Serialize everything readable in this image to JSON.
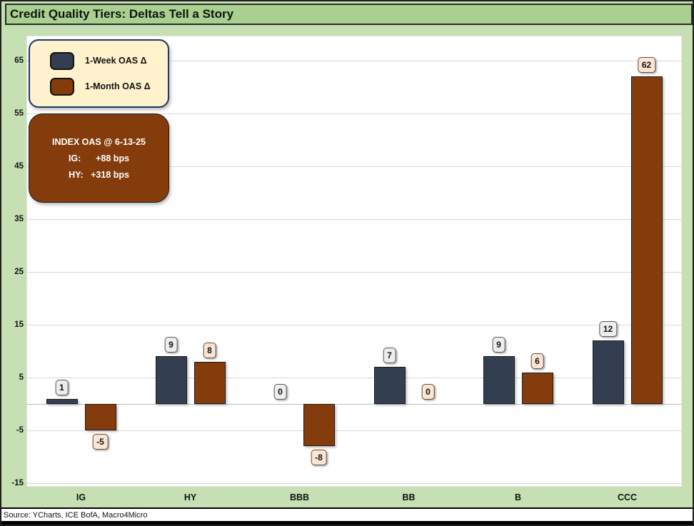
{
  "title": "Credit Quality Tiers: Deltas Tell a Story",
  "source": "Source: YCharts, ICE BofA, Macro4Micro",
  "legend": {
    "items": [
      {
        "key": "week",
        "label": "1-Week OAS Δ",
        "color": "#333F50"
      },
      {
        "key": "month",
        "label": "1-Month OAS Δ",
        "color": "#843C0C"
      }
    ]
  },
  "annotation": {
    "lines": [
      "INDEX OAS @ 6-13-25",
      "IG:      +88 bps",
      "HY:   +318 bps"
    ],
    "bg": "#843C0C",
    "text_color": "#FFFFFF"
  },
  "chart_data": {
    "type": "bar",
    "title": "Credit Quality Tiers: Deltas Tell a Story",
    "categories": [
      "IG",
      "HY",
      "BBB",
      "BB",
      "B",
      "CCC"
    ],
    "series": [
      {
        "name": "1-Week OAS Δ",
        "key": "week",
        "color": "#333F50",
        "values": [
          1,
          9,
          0,
          7,
          9,
          12
        ],
        "label_bg": "#EDEDED",
        "label_border": "#595959"
      },
      {
        "name": "1-Month OAS Δ",
        "key": "month",
        "color": "#843C0C",
        "values": [
          -5,
          8,
          -8,
          0,
          6,
          62
        ],
        "label_bg": "#FBE5D6",
        "label_border": "#6B4A2D"
      }
    ],
    "xlabel": "",
    "ylabel": "",
    "ylim": [
      -15,
      70
    ],
    "yticks": [
      65,
      55,
      45,
      35,
      25,
      15,
      5,
      -5,
      -15
    ],
    "grid": true,
    "legend_position": "top-left",
    "units": "bps"
  },
  "colors": {
    "title_bar_bg": "#A9D08E",
    "page_bg": "#C6E0B4",
    "plot_bg": "#FFFFFF",
    "gridline": "#D9D9D9",
    "legend_bg": "#FFF2CC",
    "legend_border": "#1F3864"
  }
}
